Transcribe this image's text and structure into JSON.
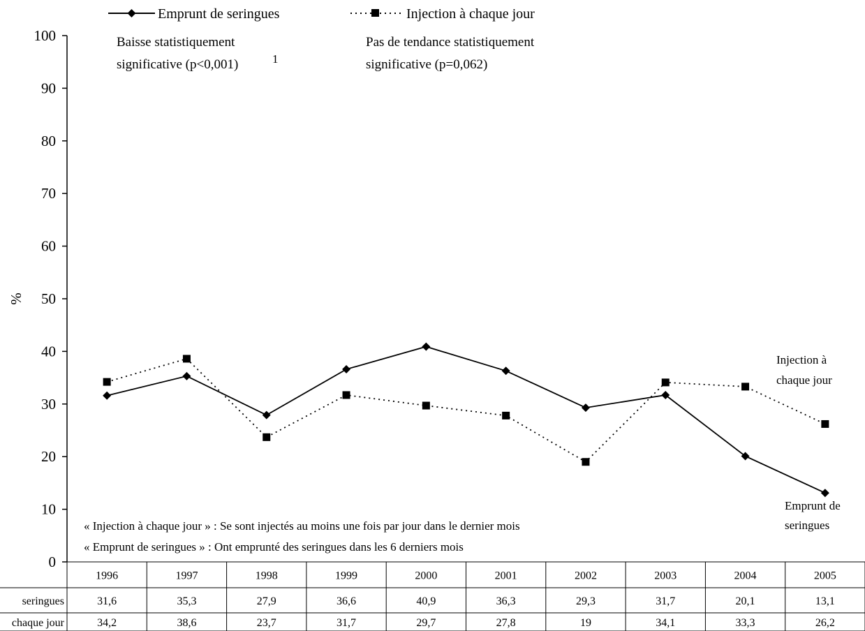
{
  "chart_data": {
    "type": "line",
    "title": "",
    "xlabel": "",
    "ylabel": "%",
    "ylim": [
      0,
      100
    ],
    "yticks": [
      0,
      10,
      20,
      30,
      40,
      50,
      60,
      70,
      80,
      90,
      100
    ],
    "categories": [
      "1996",
      "1997",
      "1998",
      "1999",
      "2000",
      "2001",
      "2002",
      "2003",
      "2004",
      "2005"
    ],
    "series": [
      {
        "name": "Emprunt de seringues",
        "values": [
          31.6,
          35.3,
          27.9,
          36.6,
          40.9,
          36.3,
          29.3,
          31.7,
          20.1,
          13.1
        ],
        "labels": [
          "31,6",
          "35,3",
          "27,9",
          "36,6",
          "40,9",
          "36,3",
          "29,3",
          "31,7",
          "20,1",
          "13,1"
        ],
        "row_label": "seringues",
        "end_label": [
          "Emprunt de",
          "seringues"
        ],
        "marker": "diamond",
        "line": "solid"
      },
      {
        "name": "Injection à chaque jour",
        "values": [
          34.2,
          38.6,
          23.7,
          31.7,
          29.7,
          27.8,
          19,
          34.1,
          33.3,
          26.2
        ],
        "labels": [
          "34,2",
          "38,6",
          "23,7",
          "31,7",
          "29,7",
          "27,8",
          "19",
          "34,1",
          "33,3",
          "26,2"
        ],
        "row_label": "chaque jour",
        "end_label": [
          "Injection à",
          "chaque jour"
        ],
        "marker": "square",
        "line": "dotted"
      }
    ],
    "annotations": {
      "left": [
        "Baisse statistiquement",
        "significative (p<0,001)"
      ],
      "left_superscript": "1",
      "right": [
        "Pas de tendance statistiquement",
        "significative (p=0,062)"
      ]
    },
    "notes": [
      "« Injection à chaque jour » : Se sont injectés au moins une fois par jour dans le dernier mois",
      "« Emprunt de seringues » : Ont emprunté des seringues dans les 6 derniers mois"
    ],
    "grid": false,
    "legend_position": "top"
  },
  "colors": {
    "line": "#000000",
    "background": "#ffffff"
  }
}
